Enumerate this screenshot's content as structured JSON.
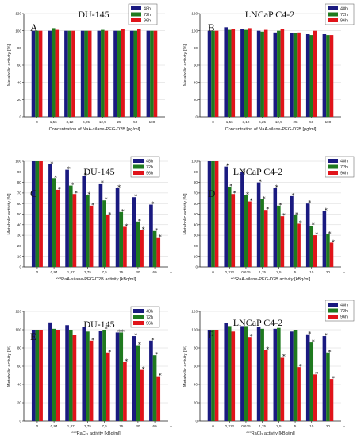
{
  "colors": {
    "s48": "#1a1a80",
    "s72": "#1f7a1f",
    "s96": "#e0141a",
    "axis": "#222222",
    "grid": "#d6d6d6"
  },
  "chart_data": [
    {
      "type": "bar",
      "panel": "A",
      "title": "DU-145",
      "xlabel": "Concentration of NaA-silane-PEG-D2B [µg/ml]",
      "ylabel": "Metabolic activity [%]",
      "ylim": [
        0,
        120
      ],
      "yticks": [
        "0",
        "20",
        "40",
        "60",
        "80",
        "100",
        "120"
      ],
      "categories": [
        "0",
        "1,56",
        "3,12",
        "6,25",
        "12,5",
        "25",
        "50",
        "100"
      ],
      "series": [
        {
          "name": "48h",
          "values": [
            100,
            100,
            100,
            100,
            100,
            100,
            100,
            100
          ],
          "stars": [
            0,
            0,
            0,
            0,
            0,
            0,
            0,
            0
          ]
        },
        {
          "name": "72h",
          "values": [
            100,
            103,
            100,
            100,
            101,
            100,
            100,
            100
          ],
          "stars": [
            0,
            0,
            0,
            0,
            0,
            0,
            0,
            0
          ]
        },
        {
          "name": "96h",
          "values": [
            100,
            101,
            100,
            100,
            100,
            102,
            102,
            100
          ],
          "stars": [
            0,
            0,
            0,
            0,
            0,
            0,
            0,
            0
          ]
        }
      ],
      "legend_position": "top-right"
    },
    {
      "type": "bar",
      "panel": "B",
      "title": "LNCaP C4-2",
      "xlabel": "Concentration of NaA-silane-PEG-D2B [µg/ml]",
      "ylabel": "Metabolic activity [%]",
      "ylim": [
        0,
        120
      ],
      "yticks": [
        "0",
        "20",
        "40",
        "60",
        "80",
        "100",
        "120"
      ],
      "categories": [
        "0",
        "1,56",
        "3,12",
        "6,25",
        "12,5",
        "25",
        "50",
        "100"
      ],
      "series": [
        {
          "name": "48h",
          "values": [
            100,
            104,
            102,
            100,
            98,
            97,
            96,
            96
          ],
          "stars": [
            0,
            0,
            0,
            0,
            0,
            0,
            0,
            0
          ]
        },
        {
          "name": "72h",
          "values": [
            100,
            101,
            101,
            99,
            100,
            97,
            95,
            95
          ],
          "stars": [
            0,
            0,
            0,
            0,
            0,
            0,
            0,
            0
          ]
        },
        {
          "name": "96h",
          "values": [
            100,
            102,
            103,
            101,
            102,
            98,
            100,
            95
          ],
          "stars": [
            0,
            0,
            0,
            0,
            0,
            0,
            0,
            0
          ]
        }
      ],
      "legend_position": "top-right"
    },
    {
      "type": "bar",
      "panel": "C",
      "title": "DU-145",
      "xlabel_sup": "223",
      "xlabel": "RaA-silane-PEG-D2B activity [kBq/ml]",
      "ylabel": "Metabolic activity [%]",
      "ylim": [
        0,
        100
      ],
      "yticks": [
        "0",
        "10",
        "20",
        "30",
        "40",
        "50",
        "60",
        "70",
        "80",
        "90",
        "100"
      ],
      "categories": [
        "0",
        "0,94",
        "1,87",
        "3,75",
        "7,5",
        "15",
        "30",
        "60"
      ],
      "series": [
        {
          "name": "48h",
          "values": [
            100,
            97,
            92,
            86,
            79,
            75,
            66,
            59
          ],
          "stars": [
            0,
            1,
            1,
            1,
            1,
            1,
            1,
            1
          ]
        },
        {
          "name": "72h",
          "values": [
            100,
            84,
            77,
            68,
            63,
            52,
            43,
            34
          ],
          "stars": [
            0,
            1,
            1,
            1,
            1,
            1,
            1,
            1
          ]
        },
        {
          "name": "96h",
          "values": [
            100,
            73,
            69,
            58,
            49,
            38,
            35,
            28
          ],
          "stars": [
            0,
            1,
            1,
            1,
            1,
            1,
            1,
            1
          ]
        }
      ],
      "legend_position": "top-right"
    },
    {
      "type": "bar",
      "panel": "D",
      "title": "LNCaP C4-2",
      "xlabel_sup": "223",
      "xlabel": "RaA-silane-PEG-D2B activity [kBq/ml]",
      "ylabel": "Metabolic activity [%]",
      "ylim": [
        0,
        100
      ],
      "yticks": [
        "0",
        "10",
        "20",
        "30",
        "40",
        "50",
        "60",
        "70",
        "80",
        "90",
        "100"
      ],
      "categories": [
        "0",
        "0,312",
        "0,625",
        "1,25",
        "2,5",
        "5",
        "10",
        "20"
      ],
      "series": [
        {
          "name": "48h",
          "values": [
            100,
            95,
            90,
            80,
            75,
            67,
            60,
            53
          ],
          "stars": [
            0,
            1,
            1,
            1,
            1,
            1,
            1,
            1
          ]
        },
        {
          "name": "72h",
          "values": [
            100,
            76,
            68,
            64,
            58,
            49,
            39,
            31
          ],
          "stars": [
            0,
            1,
            1,
            1,
            1,
            1,
            1,
            1
          ]
        },
        {
          "name": "96h",
          "values": [
            100,
            69,
            62,
            54,
            48,
            41,
            30,
            23
          ],
          "stars": [
            0,
            1,
            1,
            1,
            1,
            1,
            1,
            1
          ]
        }
      ],
      "legend_position": "top-right"
    },
    {
      "type": "bar",
      "panel": "E",
      "title": "DU-145",
      "xlabel_sup": "223",
      "xlabel": "RaCl₃ activity [kBq/ml]",
      "ylabel": "Metabolic activity [%]",
      "ylim": [
        0,
        120
      ],
      "yticks": [
        "0",
        "20",
        "40",
        "60",
        "80",
        "100",
        "120"
      ],
      "categories": [
        "0",
        "0,94",
        "1,87",
        "3,75",
        "7,5",
        "15",
        "30",
        "60"
      ],
      "series": [
        {
          "name": "48h",
          "values": [
            100,
            108,
            105,
            103,
            99,
            97,
            93,
            88
          ],
          "stars": [
            0,
            0,
            0,
            0,
            0,
            1,
            1,
            1
          ]
        },
        {
          "name": "72h",
          "values": [
            100,
            101,
            100,
            98,
            100,
            97,
            83,
            72
          ],
          "stars": [
            0,
            0,
            0,
            0,
            1,
            1,
            1,
            1
          ]
        },
        {
          "name": "96h",
          "values": [
            100,
            100,
            94,
            88,
            75,
            65,
            56,
            49
          ],
          "stars": [
            0,
            0,
            0,
            1,
            1,
            1,
            1,
            1
          ]
        }
      ],
      "legend_position": "top-right"
    },
    {
      "type": "bar",
      "panel": "F",
      "title": "LNCaP C4-2",
      "xlabel_sup": "223",
      "xlabel": "RaCl₃ activity [kBq/ml]",
      "ylabel": "Metabolic activity [%]",
      "ylim": [
        0,
        120
      ],
      "yticks": [
        "0",
        "20",
        "40",
        "60",
        "80",
        "100",
        "120"
      ],
      "categories": [
        "0",
        "0,312",
        "0,625",
        "1,25",
        "2,5",
        "5",
        "10",
        "20"
      ],
      "series": [
        {
          "name": "48h",
          "values": [
            100,
            107,
            104,
            103,
            101,
            98,
            95,
            93
          ],
          "stars": [
            0,
            0,
            0,
            0,
            0,
            0,
            1,
            1
          ]
        },
        {
          "name": "72h",
          "values": [
            100,
            104,
            104,
            101,
            102,
            100,
            86,
            75
          ],
          "stars": [
            0,
            0,
            0,
            0,
            0,
            0,
            1,
            1
          ]
        },
        {
          "name": "96h",
          "values": [
            100,
            98,
            92,
            78,
            70,
            59,
            51,
            46
          ],
          "stars": [
            0,
            0,
            1,
            1,
            1,
            1,
            1,
            1
          ]
        }
      ],
      "legend_position": "top-right"
    }
  ]
}
